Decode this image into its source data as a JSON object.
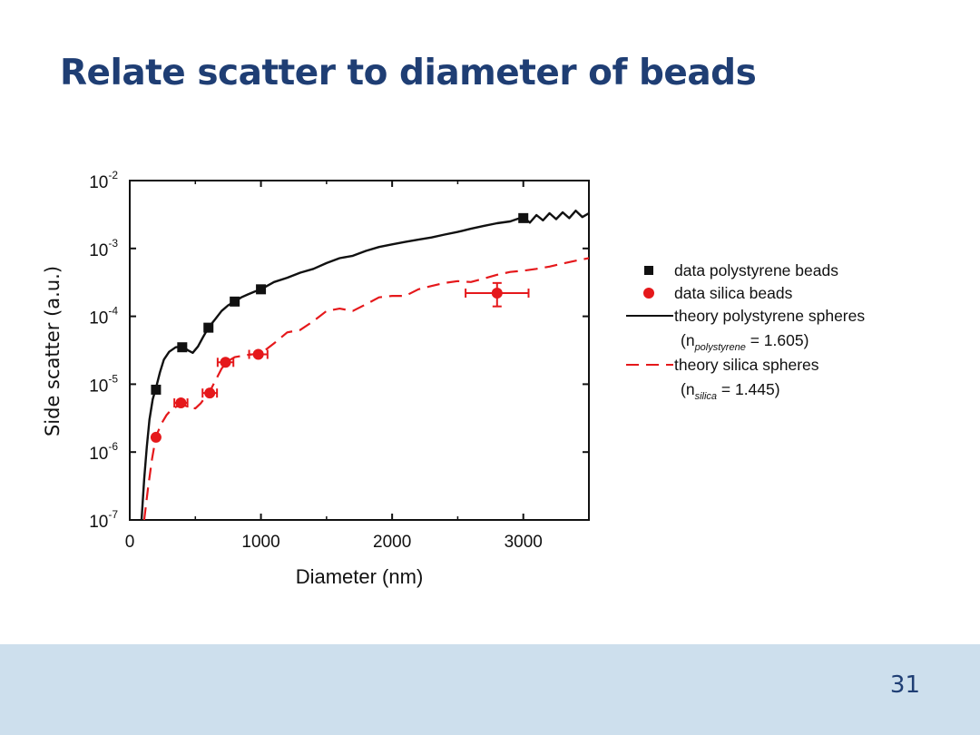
{
  "slide": {
    "title": "Relate scatter to diameter of beads",
    "page_number": "31",
    "footer_color": "#cddfed",
    "title_color": "#1f3e74"
  },
  "chart_data": {
    "type": "scatter",
    "xlabel": "Diameter (nm)",
    "ylabel": "Side scatter (a.u.)",
    "xlim": [
      0,
      3500
    ],
    "ylim": [
      1e-07,
      0.01
    ],
    "yscale": "log",
    "x_ticks": [
      0,
      1000,
      2000,
      3000
    ],
    "y_ticks": [
      {
        "value": 0.01,
        "base": "10",
        "exp": "-2"
      },
      {
        "value": 0.001,
        "base": "10",
        "exp": "-3"
      },
      {
        "value": 0.0001,
        "base": "10",
        "exp": "-4"
      },
      {
        "value": 1e-05,
        "base": "10",
        "exp": "-5"
      },
      {
        "value": 1e-06,
        "base": "10",
        "exp": "-6"
      },
      {
        "value": 1e-07,
        "base": "10",
        "exp": "-7"
      }
    ],
    "grid": false,
    "legend_position": "right",
    "series": [
      {
        "name": "data polystyrene beads",
        "kind": "points",
        "marker": "square",
        "color": "#111111",
        "points": [
          {
            "x": 200,
            "y": 8.3e-06
          },
          {
            "x": 400,
            "y": 3.5e-05
          },
          {
            "x": 600,
            "y": 6.8e-05
          },
          {
            "x": 800,
            "y": 0.000165
          },
          {
            "x": 1000,
            "y": 0.00025
          },
          {
            "x": 3000,
            "y": 0.0028
          }
        ]
      },
      {
        "name": "data silica beads",
        "kind": "points",
        "marker": "circle",
        "color": "#e5181b",
        "points": [
          {
            "x": 200,
            "y": 1.65e-06,
            "xerr": 15
          },
          {
            "x": 390,
            "y": 5.3e-06,
            "xerr": 50
          },
          {
            "x": 610,
            "y": 7.4e-06,
            "xerr": 55
          },
          {
            "x": 730,
            "y": 2.1e-05,
            "xerr": 60
          },
          {
            "x": 980,
            "y": 2.75e-05,
            "xerr": 70
          },
          {
            "x": 2800,
            "y": 0.00022,
            "xerr": 240,
            "yerr_low": 0.00014,
            "yerr_high": 0.00031
          }
        ]
      },
      {
        "name": "theory polystyrene spheres",
        "legend_note": {
          "prefix": "(n",
          "subscript": "polystyrene",
          "suffix": " = 1.605)"
        },
        "kind": "line",
        "style": "solid",
        "color": "#111111",
        "points": [
          [
            90,
            1e-07
          ],
          [
            110,
            4e-07
          ],
          [
            130,
            1.2e-06
          ],
          [
            150,
            3e-06
          ],
          [
            175,
            6e-06
          ],
          [
            200,
            8.8e-06
          ],
          [
            230,
            1.5e-05
          ],
          [
            260,
            2.3e-05
          ],
          [
            300,
            3e-05
          ],
          [
            350,
            3.5e-05
          ],
          [
            400,
            3.6e-05
          ],
          [
            450,
            3.1e-05
          ],
          [
            480,
            2.9e-05
          ],
          [
            520,
            3.6e-05
          ],
          [
            560,
            5e-05
          ],
          [
            600,
            6.8e-05
          ],
          [
            650,
            9e-05
          ],
          [
            700,
            0.00012
          ],
          [
            750,
            0.000145
          ],
          [
            800,
            0.000165
          ],
          [
            850,
            0.00019
          ],
          [
            900,
            0.00021
          ],
          [
            950,
            0.00023
          ],
          [
            1000,
            0.00025
          ],
          [
            1100,
            0.00032
          ],
          [
            1200,
            0.00037
          ],
          [
            1300,
            0.00044
          ],
          [
            1400,
            0.0005
          ],
          [
            1500,
            0.00061
          ],
          [
            1600,
            0.00072
          ],
          [
            1700,
            0.00078
          ],
          [
            1800,
            0.00092
          ],
          [
            1900,
            0.00105
          ],
          [
            2000,
            0.00115
          ],
          [
            2100,
            0.00125
          ],
          [
            2200,
            0.00135
          ],
          [
            2300,
            0.00145
          ],
          [
            2400,
            0.0016
          ],
          [
            2500,
            0.00175
          ],
          [
            2600,
            0.00195
          ],
          [
            2700,
            0.00215
          ],
          [
            2800,
            0.00235
          ],
          [
            2900,
            0.0025
          ],
          [
            2950,
            0.0027
          ],
          [
            3000,
            0.0029
          ],
          [
            3050,
            0.0024
          ],
          [
            3100,
            0.0031
          ],
          [
            3150,
            0.0026
          ],
          [
            3200,
            0.0033
          ],
          [
            3250,
            0.0027
          ],
          [
            3300,
            0.0034
          ],
          [
            3350,
            0.0028
          ],
          [
            3400,
            0.0036
          ],
          [
            3450,
            0.0029
          ],
          [
            3500,
            0.0033
          ]
        ]
      },
      {
        "name": "theory silica spheres",
        "legend_note": {
          "prefix": "(n",
          "subscript": "silica",
          "suffix": " = 1.445)"
        },
        "kind": "line",
        "style": "dashed",
        "color": "#e5181b",
        "points": [
          [
            110,
            1e-07
          ],
          [
            140,
            3e-07
          ],
          [
            170,
            8e-07
          ],
          [
            200,
            1.7e-06
          ],
          [
            240,
            2.6e-06
          ],
          [
            280,
            3.5e-06
          ],
          [
            320,
            4.3e-06
          ],
          [
            360,
            4.7e-06
          ],
          [
            400,
            5e-06
          ],
          [
            450,
            4.6e-06
          ],
          [
            500,
            4.4e-06
          ],
          [
            540,
            5.2e-06
          ],
          [
            580,
            6.6e-06
          ],
          [
            620,
            8.5e-06
          ],
          [
            660,
            1.2e-05
          ],
          [
            700,
            1.7e-05
          ],
          [
            750,
            2.2e-05
          ],
          [
            800,
            2.5e-05
          ],
          [
            900,
            2.7e-05
          ],
          [
            1000,
            2.85e-05
          ],
          [
            1100,
            4e-05
          ],
          [
            1200,
            5.8e-05
          ],
          [
            1300,
            6.3e-05
          ],
          [
            1400,
            8.5e-05
          ],
          [
            1500,
            0.00012
          ],
          [
            1600,
            0.00013
          ],
          [
            1700,
            0.00012
          ],
          [
            1800,
            0.00015
          ],
          [
            1900,
            0.00019
          ],
          [
            2000,
            0.0002
          ],
          [
            2100,
            0.0002
          ],
          [
            2200,
            0.00025
          ],
          [
            2300,
            0.00028
          ],
          [
            2400,
            0.00031
          ],
          [
            2500,
            0.00033
          ],
          [
            2600,
            0.00032
          ],
          [
            2700,
            0.00036
          ],
          [
            2800,
            0.00041
          ],
          [
            2900,
            0.00045
          ],
          [
            3000,
            0.00047
          ],
          [
            3100,
            0.0005
          ],
          [
            3200,
            0.00054
          ],
          [
            3300,
            0.0006
          ],
          [
            3400,
            0.00066
          ],
          [
            3500,
            0.00072
          ]
        ]
      }
    ]
  }
}
